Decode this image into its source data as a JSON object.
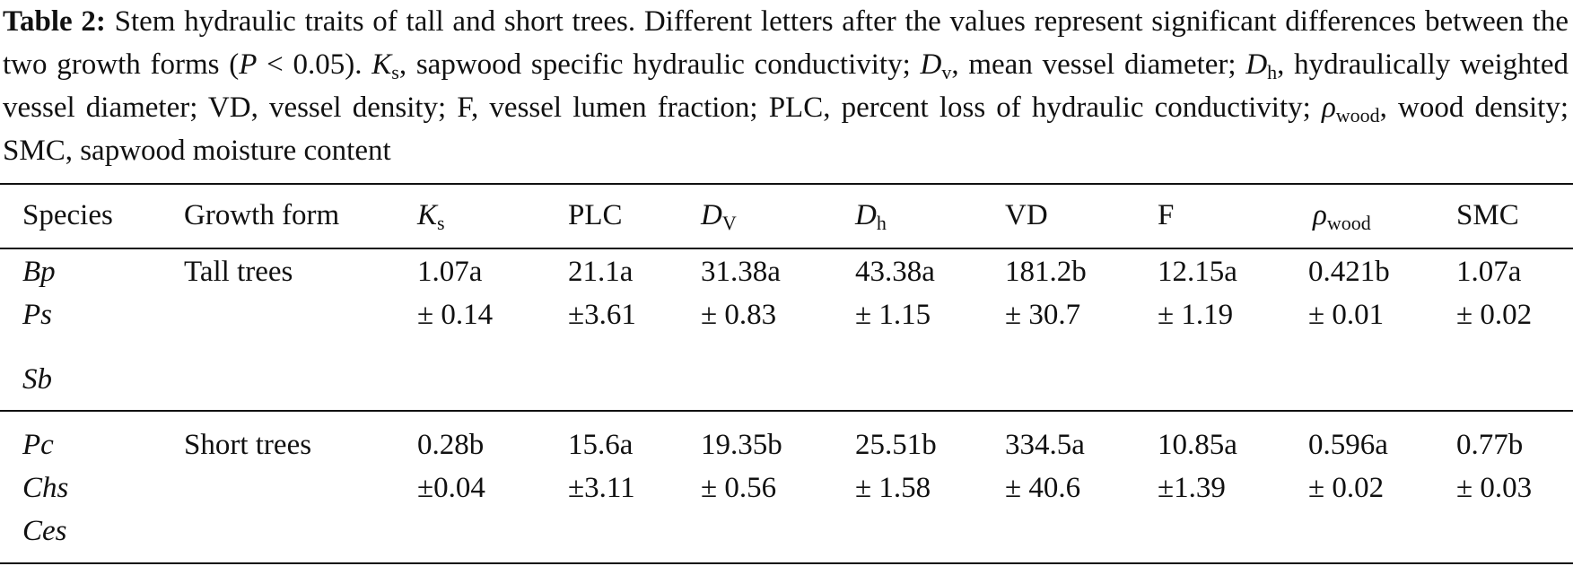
{
  "caption": {
    "label": "Table 2:",
    "s1": " Stem hydraulic traits of tall and short trees. Different letters after the values represent significant differences between the two growth forms (",
    "p": "P",
    "s2": " < 0.05). ",
    "ks_main": "K",
    "ks_sub": "s",
    "s3": ", sapwood specific hydraulic conductivity; ",
    "dv_main": "D",
    "dv_sub": "v",
    "s4": ", mean vessel diameter; ",
    "dh_main": "D",
    "dh_sub": "h",
    "s5": ", hydraulically weighted vessel diameter; VD, vessel density; F, vessel lumen fraction; PLC, percent loss of hydraulic conductivity; ",
    "rho_main": "ρ",
    "rho_sub": "wood",
    "s6": ", wood density; SMC, sapwood moisture content"
  },
  "table": {
    "headers": {
      "species": "Species",
      "growth_form": "Growth form",
      "ks_main": "K",
      "ks_sub": "s",
      "plc": "PLC",
      "dv_main": "D",
      "dv_sub": "V",
      "dh_main": "D",
      "dh_sub": "h",
      "vd": "VD",
      "f": "F",
      "rho_main": "ρ",
      "rho_sub": "wood",
      "smc": "SMC"
    },
    "groups": [
      {
        "species": [
          "Bp",
          "Ps",
          "Sb"
        ],
        "growth_form": "Tall trees",
        "values": {
          "ks": [
            "1.07a",
            "± 0.14"
          ],
          "plc": [
            "21.1a",
            "±3.61"
          ],
          "dv": [
            "31.38a",
            "± 0.83"
          ],
          "dh": [
            "43.38a",
            "± 1.15"
          ],
          "vd": [
            "181.2b",
            "± 30.7"
          ],
          "f": [
            "12.15a",
            "± 1.19"
          ],
          "rho": [
            "0.421b",
            "± 0.01"
          ],
          "smc": [
            "1.07a",
            "± 0.02"
          ]
        }
      },
      {
        "species": [
          "Pc",
          "Chs",
          "Ces"
        ],
        "growth_form": "Short trees",
        "values": {
          "ks": [
            "0.28b",
            "±0.04"
          ],
          "plc": [
            "15.6a",
            "±3.11"
          ],
          "dv": [
            "19.35b",
            "± 0.56"
          ],
          "dh": [
            "25.51b",
            "± 1.58"
          ],
          "vd": [
            "334.5a",
            "± 40.6"
          ],
          "f": [
            "10.85a",
            "±1.39"
          ],
          "rho": [
            "0.596a",
            "± 0.02"
          ],
          "smc": [
            "0.77b",
            "± 0.03"
          ]
        }
      }
    ]
  }
}
